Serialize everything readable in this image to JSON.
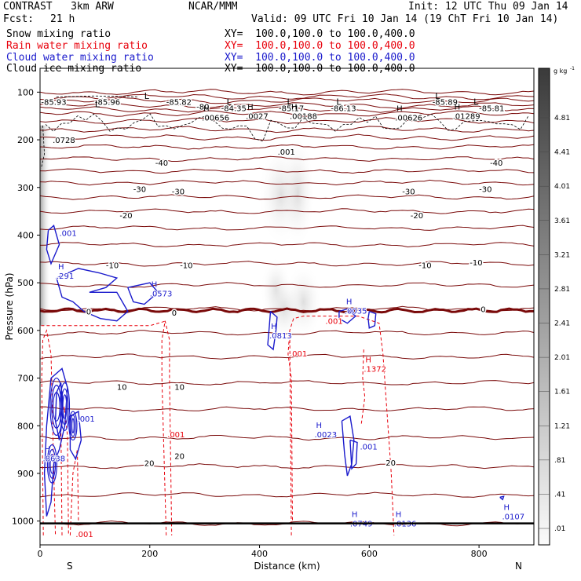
{
  "header": {
    "model": "CONTRAST   3km ARW",
    "org": "NCAR/MMM",
    "init": "Init: 12 UTC Thu 09 Jan 14",
    "fcst_label": "Fcst:",
    "fcst_value": "21 h",
    "valid": "Valid: 09 UTC Fri 10 Jan 14 (19 ChT Fri 10 Jan 14)"
  },
  "fields": [
    {
      "name": "Snow mixing ratio",
      "xy": "XY=  100.0,100.0 to 100.0,400.0",
      "color": "#000000"
    },
    {
      "name": "Rain water mixing ratio",
      "xy": "XY=  100.0,100.0 to 100.0,400.0",
      "color": "#e8000b"
    },
    {
      "name": "Cloud water mixing ratio",
      "xy": "XY=  100.0,100.0 to 100.0,400.0",
      "color": "#1a1acc"
    },
    {
      "name": "Cloud ice mixing ratio",
      "xy": "XY=  100.0,100.0 to 100.0,400.0",
      "color": "#000000"
    }
  ],
  "colorbar": {
    "unit": "g kg",
    "unit_exp": "-1",
    "labels": [
      "4.81",
      "4.41",
      "4.01",
      "3.61",
      "3.21",
      "2.81",
      "2.41",
      "2.01",
      "1.61",
      "1.21",
      ".81",
      ".41",
      ".01"
    ]
  },
  "chart_data": {
    "type": "contour",
    "xlabel": "Distance (km)",
    "ylabel": "Pressure (hPa)",
    "xlim": [
      0,
      900
    ],
    "ylim": [
      1050,
      50
    ],
    "x_ticks": [
      "0",
      "200",
      "400",
      "600",
      "800"
    ],
    "y_ticks": [
      "100",
      "200",
      "300",
      "400",
      "500",
      "600",
      "700",
      "800",
      "900",
      "1000"
    ],
    "ends": {
      "left": "S",
      "right": "N"
    },
    "temperature_labels": [
      {
        "x": 2,
        "p": 120,
        "text": "-85.93"
      },
      {
        "x": 100,
        "p": 120,
        "text": "-85.96"
      },
      {
        "x": 230,
        "p": 120,
        "text": "-85.82"
      },
      {
        "x": 285,
        "p": 130,
        "text": "-80"
      },
      {
        "x": 330,
        "p": 133,
        "text": "-84.35"
      },
      {
        "x": 435,
        "p": 133,
        "text": "-85.17"
      },
      {
        "x": 530,
        "p": 133,
        "text": "-86.13"
      },
      {
        "x": 715,
        "p": 120,
        "text": "-85.89"
      },
      {
        "x": 800,
        "p": 133,
        "text": "-85.81"
      },
      {
        "x": 210,
        "p": 248,
        "text": "-40"
      },
      {
        "x": 820,
        "p": 248,
        "text": "-40"
      },
      {
        "x": 170,
        "p": 303,
        "text": "-30"
      },
      {
        "x": 240,
        "p": 308,
        "text": "-30"
      },
      {
        "x": 660,
        "p": 308,
        "text": "-30"
      },
      {
        "x": 800,
        "p": 303,
        "text": "-30"
      },
      {
        "x": 145,
        "p": 358,
        "text": "-20"
      },
      {
        "x": 675,
        "p": 358,
        "text": "-20"
      },
      {
        "x": 120,
        "p": 463,
        "text": "-10"
      },
      {
        "x": 255,
        "p": 463,
        "text": "-10"
      },
      {
        "x": 690,
        "p": 463,
        "text": "-10"
      },
      {
        "x": 783,
        "p": 457,
        "text": "-10"
      },
      {
        "x": 84,
        "p": 560,
        "text": "0"
      },
      {
        "x": 240,
        "p": 562,
        "text": "0"
      },
      {
        "x": 803,
        "p": 555,
        "text": "0"
      },
      {
        "x": 140,
        "p": 718,
        "text": "10"
      },
      {
        "x": 245,
        "p": 718,
        "text": "10"
      },
      {
        "x": 190,
        "p": 878,
        "text": "20"
      },
      {
        "x": 245,
        "p": 863,
        "text": "20"
      },
      {
        "x": 630,
        "p": 877,
        "text": "20"
      }
    ],
    "isotherm_baselines": [
      100,
      110,
      118,
      128,
      136,
      145,
      160,
      178,
      195,
      215,
      240,
      265,
      290,
      320,
      350,
      385,
      420,
      460,
      505,
      555,
      605,
      655,
      710,
      765,
      825,
      885,
      945,
      1005
    ],
    "freezing_level_p": 558,
    "cloud_ice_marks": [
      {
        "x": 23,
        "p": 200,
        "type": "value",
        "text": ".0728"
      },
      {
        "x": 295,
        "p": 153,
        "type": "H",
        "text": ".00656"
      },
      {
        "x": 375,
        "p": 150,
        "type": "H",
        "text": ".0027"
      },
      {
        "x": 455,
        "p": 150,
        "type": "H",
        "text": ".00188"
      },
      {
        "x": 433,
        "p": 225,
        "type": "value",
        "text": ".001"
      },
      {
        "x": 647,
        "p": 153,
        "type": "H",
        "text": ".00626"
      },
      {
        "x": 752,
        "p": 150,
        "type": "H",
        "text": ".01289"
      }
    ],
    "cloud_water_marks": [
      {
        "x": 35,
        "p": 395,
        "type": "value",
        "text": ".001"
      },
      {
        "x": 30,
        "p": 485,
        "type": "H",
        "text": ".291"
      },
      {
        "x": 200,
        "p": 522,
        "type": "H",
        "text": ".0573"
      },
      {
        "x": 418,
        "p": 610,
        "type": "H",
        "text": ".0813"
      },
      {
        "x": 555,
        "p": 558,
        "type": "H",
        "text": ".0035"
      },
      {
        "x": 68,
        "p": 785,
        "type": "value",
        "text": ".001"
      },
      {
        "x": 500,
        "p": 818,
        "type": "H",
        "text": ".0023"
      },
      {
        "x": 583,
        "p": 843,
        "type": "value",
        "text": ".001"
      },
      {
        "x": 5,
        "p": 868,
        "type": "H",
        "text": ".8638"
      },
      {
        "x": 565,
        "p": 1005,
        "type": "H",
        "text": ".0749"
      },
      {
        "x": 645,
        "p": 1005,
        "type": "H",
        "text": ".0136"
      },
      {
        "x": 842,
        "p": 990,
        "type": "H",
        "text": ".0107"
      }
    ],
    "rain_water_marks": [
      {
        "x": 520,
        "p": 580,
        "type": "value",
        "text": ".001"
      },
      {
        "x": 455,
        "p": 648,
        "type": "value",
        "text": ".001"
      },
      {
        "x": 590,
        "p": 680,
        "type": "H",
        "text": ".1372"
      },
      {
        "x": 232,
        "p": 818,
        "type": "value",
        "text": ".001"
      },
      {
        "x": 65,
        "p": 1027,
        "type": "value",
        "text": ".001"
      }
    ],
    "terrain_p": 1005
  }
}
